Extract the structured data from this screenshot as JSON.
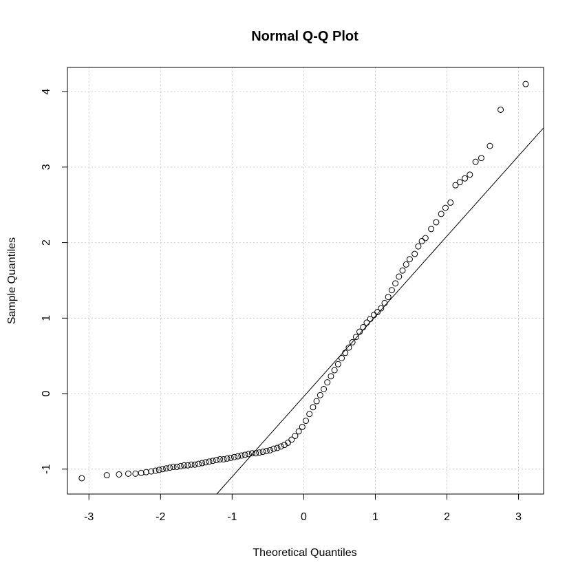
{
  "chart_data": {
    "type": "scatter",
    "title": "Normal Q-Q Plot",
    "xlabel": "Theoretical Quantiles",
    "ylabel": "Sample Quantiles",
    "xlim": [
      -3.3,
      3.35
    ],
    "ylim": [
      -1.33,
      4.32
    ],
    "xticks": [
      -3,
      -2,
      -1,
      0,
      1,
      2,
      3
    ],
    "yticks": [
      -1,
      0,
      1,
      2,
      3,
      4
    ],
    "grid": true,
    "reference_line": {
      "x": [
        -1.3,
        3.35
      ],
      "y": [
        -1.42,
        3.52
      ]
    },
    "series": [
      {
        "points": [
          [
            -3.1,
            -1.12
          ],
          [
            -2.75,
            -1.08
          ],
          [
            -2.58,
            -1.07
          ],
          [
            -2.45,
            -1.06
          ],
          [
            -2.35,
            -1.06
          ],
          [
            -2.27,
            -1.05
          ],
          [
            -2.2,
            -1.04
          ],
          [
            -2.13,
            -1.03
          ],
          [
            -2.07,
            -1.02
          ],
          [
            -2.02,
            -1.01
          ],
          [
            -1.97,
            -1.0
          ],
          [
            -1.92,
            -0.99
          ],
          [
            -1.87,
            -0.98
          ],
          [
            -1.82,
            -0.97
          ],
          [
            -1.77,
            -0.97
          ],
          [
            -1.72,
            -0.96
          ],
          [
            -1.67,
            -0.95
          ],
          [
            -1.62,
            -0.95
          ],
          [
            -1.57,
            -0.94
          ],
          [
            -1.52,
            -0.94
          ],
          [
            -1.47,
            -0.93
          ],
          [
            -1.42,
            -0.92
          ],
          [
            -1.37,
            -0.91
          ],
          [
            -1.32,
            -0.9
          ],
          [
            -1.27,
            -0.89
          ],
          [
            -1.22,
            -0.88
          ],
          [
            -1.17,
            -0.87
          ],
          [
            -1.12,
            -0.87
          ],
          [
            -1.07,
            -0.86
          ],
          [
            -1.02,
            -0.85
          ],
          [
            -0.97,
            -0.84
          ],
          [
            -0.92,
            -0.83
          ],
          [
            -0.87,
            -0.82
          ],
          [
            -0.82,
            -0.81
          ],
          [
            -0.77,
            -0.8
          ],
          [
            -0.72,
            -0.79
          ],
          [
            -0.67,
            -0.79
          ],
          [
            -0.62,
            -0.78
          ],
          [
            -0.57,
            -0.77
          ],
          [
            -0.52,
            -0.76
          ],
          [
            -0.47,
            -0.75
          ],
          [
            -0.42,
            -0.73
          ],
          [
            -0.37,
            -0.72
          ],
          [
            -0.32,
            -0.7
          ],
          [
            -0.27,
            -0.68
          ],
          [
            -0.22,
            -0.65
          ],
          [
            -0.17,
            -0.61
          ],
          [
            -0.12,
            -0.56
          ],
          [
            -0.07,
            -0.5
          ],
          [
            -0.02,
            -0.44
          ],
          [
            0.03,
            -0.36
          ],
          [
            0.08,
            -0.27
          ],
          [
            0.13,
            -0.18
          ],
          [
            0.18,
            -0.1
          ],
          [
            0.23,
            -0.02
          ],
          [
            0.28,
            0.06
          ],
          [
            0.33,
            0.15
          ],
          [
            0.38,
            0.23
          ],
          [
            0.43,
            0.31
          ],
          [
            0.48,
            0.39
          ],
          [
            0.53,
            0.47
          ],
          [
            0.58,
            0.54
          ],
          [
            0.63,
            0.61
          ],
          [
            0.68,
            0.68
          ],
          [
            0.73,
            0.75
          ],
          [
            0.78,
            0.82
          ],
          [
            0.83,
            0.88
          ],
          [
            0.88,
            0.94
          ],
          [
            0.93,
            0.99
          ],
          [
            0.98,
            1.04
          ],
          [
            1.03,
            1.08
          ],
          [
            1.08,
            1.13
          ],
          [
            1.13,
            1.2
          ],
          [
            1.18,
            1.28
          ],
          [
            1.23,
            1.37
          ],
          [
            1.28,
            1.46
          ],
          [
            1.33,
            1.55
          ],
          [
            1.38,
            1.63
          ],
          [
            1.43,
            1.71
          ],
          [
            1.48,
            1.78
          ],
          [
            1.55,
            1.85
          ],
          [
            1.6,
            1.95
          ],
          [
            1.65,
            2.02
          ],
          [
            1.7,
            2.06
          ],
          [
            1.78,
            2.18
          ],
          [
            1.85,
            2.27
          ],
          [
            1.92,
            2.38
          ],
          [
            1.98,
            2.46
          ],
          [
            2.05,
            2.53
          ],
          [
            2.12,
            2.76
          ],
          [
            2.18,
            2.8
          ],
          [
            2.25,
            2.85
          ],
          [
            2.32,
            2.9
          ],
          [
            2.4,
            3.07
          ],
          [
            2.48,
            3.12
          ],
          [
            2.6,
            3.28
          ],
          [
            2.75,
            3.76
          ],
          [
            3.1,
            4.1
          ]
        ]
      }
    ]
  }
}
